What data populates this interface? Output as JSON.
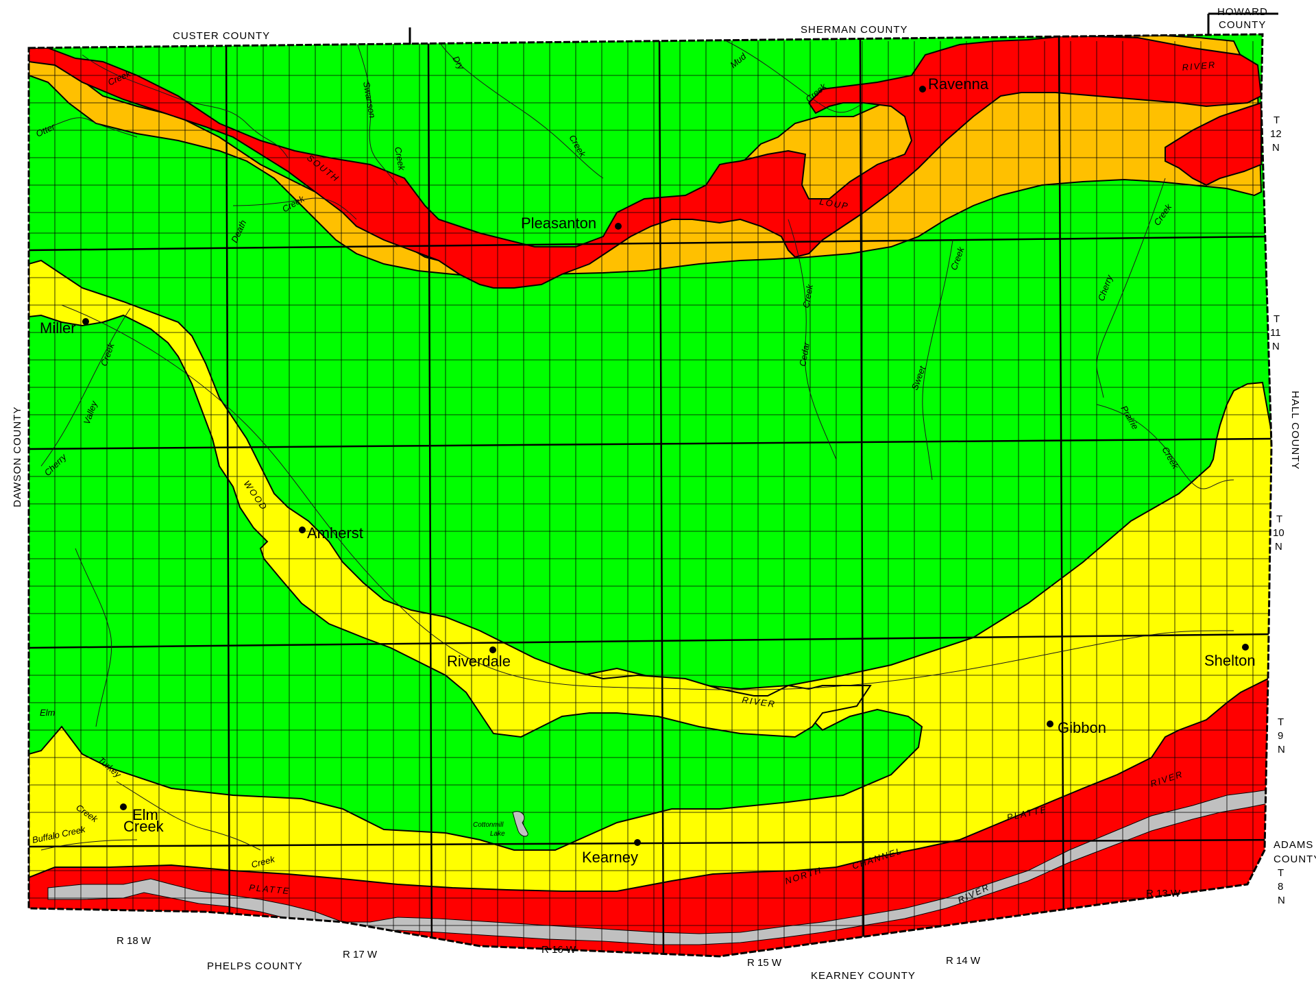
{
  "legend_colors": {
    "green": "#00ff00",
    "yellow": "#ffff00",
    "orange": "#ffc000",
    "red": "#ff0000",
    "river_channel": "#c0c0c0"
  },
  "counties": {
    "custer": "CUSTER COUNTY",
    "sherman": "SHERMAN COUNTY",
    "howard_1": "HOWARD",
    "howard_2": "COUNTY",
    "dawson": "DAWSON COUNTY",
    "hall": "HALL COUNTY",
    "adams_1": "ADAMS",
    "adams_2": "COUNTY",
    "phelps": "PHELPS COUNTY",
    "kearney": "KEARNEY COUNTY"
  },
  "towns": {
    "ravenna": "Ravenna",
    "pleasanton": "Pleasanton",
    "miller": "Miller",
    "amherst": "Amherst",
    "riverdale": "Riverdale",
    "shelton": "Shelton",
    "gibbon": "Gibbon",
    "elm_creek_1": "Elm",
    "elm_creek_2": "Creek",
    "kearney": "Kearney"
  },
  "streams": {
    "otter": "Otter",
    "creek": "Creek",
    "dry": "Dry",
    "mud": "Mud",
    "swanson": "Swanson",
    "death": "Death",
    "cedar": "Cedar",
    "sweet": "Sweet",
    "cherry": "Cherry",
    "valley": "Valley",
    "prairie": "Prairie",
    "elm": "Elm",
    "turkey": "Turkey",
    "buffalo_creek": "Buffalo Creek",
    "cottonmill_1": "Cottonmill",
    "cottonmill_2": "Lake"
  },
  "rivers": {
    "south": "SOUTH",
    "loup": "LOUP",
    "river": "RIVER",
    "wood": "WOOD",
    "platte": "PLATTE",
    "north": "NORTH",
    "channel": "CHANNEL"
  },
  "townships": [
    {
      "t": "T",
      "n": "12",
      "dir": "N"
    },
    {
      "t": "T",
      "n": "11",
      "dir": "N"
    },
    {
      "t": "T",
      "n": "10",
      "dir": "N"
    },
    {
      "t": "T",
      "n": "9",
      "dir": "N"
    },
    {
      "t": "T",
      "n": "8",
      "dir": "N"
    }
  ],
  "ranges": {
    "r18": "R 18 W",
    "r17": "R 17 W",
    "r16": "R 16 W",
    "r15": "R 15 W",
    "r14": "R 14 W",
    "r13": "R 13 W"
  }
}
